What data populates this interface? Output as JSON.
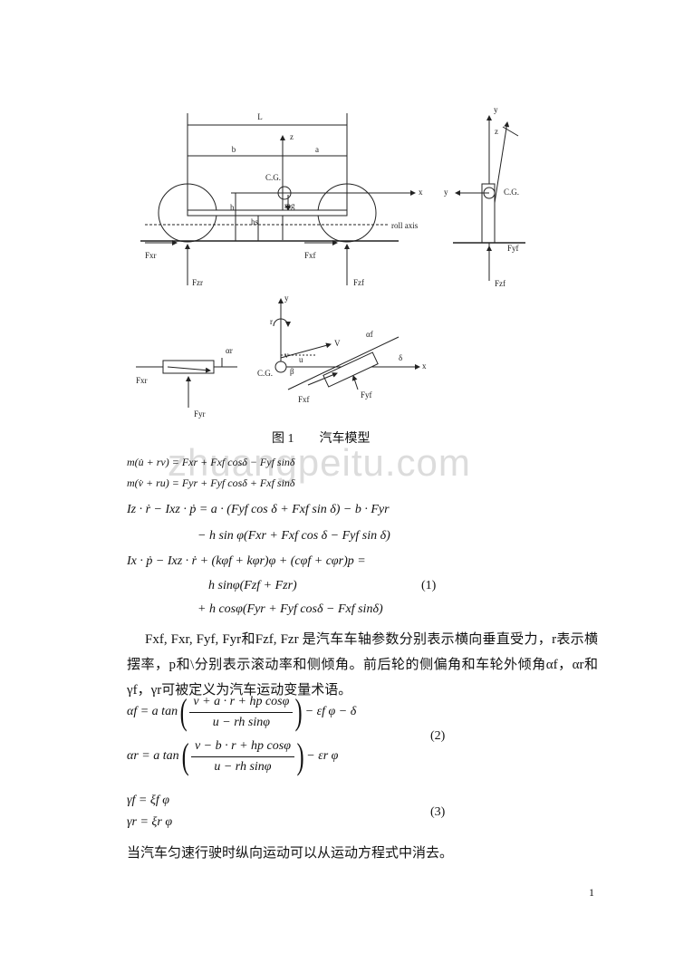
{
  "figure": {
    "side_labels": [
      "L",
      "b",
      "a",
      "z",
      "C.G.",
      "x",
      "mg",
      "h",
      "hs",
      "roll axis",
      "Fxr",
      "Fxf",
      "Fzr",
      "Fzf"
    ],
    "rear_labels": [
      "y",
      "z",
      "y",
      "C.G.",
      "Fyf",
      "Fzf"
    ],
    "top_labels": [
      "y",
      "r",
      "V",
      "αf",
      "u",
      "v",
      "β",
      "δ",
      "x",
      "C.G.",
      "αr",
      "Fxr",
      "Fyr",
      "Fxf",
      "Fyf"
    ],
    "caption": "图 1　　汽车模型"
  },
  "watermark": "zhuangpeitu.com",
  "equations_1": {
    "lines": [
      "m(u̇ + rv) = Fxr + Fxf cosδ − Fyf sinδ",
      "m(v̇ + ru) = Fyr + Fyf cosδ + Fxf sinδ",
      "Iz · ṙ − Ixz · ṗ = a · (Fyf  cos δ + Fxf  sin δ) − b · Fyr",
      "− h sin φ(Fxr + Fxf  cos δ − Fyf  sin δ)",
      "Ix · ṗ − Ixz · ṙ + (kφf + kφr)φ + (cφf + cφr)p =",
      "h sinφ(Fzf + Fzr)",
      "+ h cosφ(Fyr + Fyf cosδ − Fxf sinδ)"
    ],
    "number": "(1)"
  },
  "paragraph": "Fxf,  Fxr,  Fyf,  Fyr和Fzf,  Fzr 是汽车车轴参数分别表示横向垂直受力，r表示横摆率，p和\\分别表示滚动率和侧倾角。前后轮的侧偏角和车轮外倾角αf，αr和γf，γr可被定义为汽车运动变量术语。",
  "equations_2": {
    "rows": [
      {
        "lhs": "αf = a tan",
        "numerator": "v + a · r + hp cosφ",
        "denominator": "u − rh sinφ",
        "tail": "− εf φ − δ"
      },
      {
        "lhs": "αr = a tan",
        "numerator": "v − b · r + hp cosφ",
        "denominator": "u − rh sinφ",
        "tail": "− εr φ"
      }
    ],
    "number": "(2)"
  },
  "equations_3": {
    "lines": [
      "γf = ξf φ",
      "γr = ξr φ"
    ],
    "number": "(3)"
  },
  "closing": "当汽车匀速行驶时纵向运动可以从运动方程式中消去。",
  "page_number": "1"
}
